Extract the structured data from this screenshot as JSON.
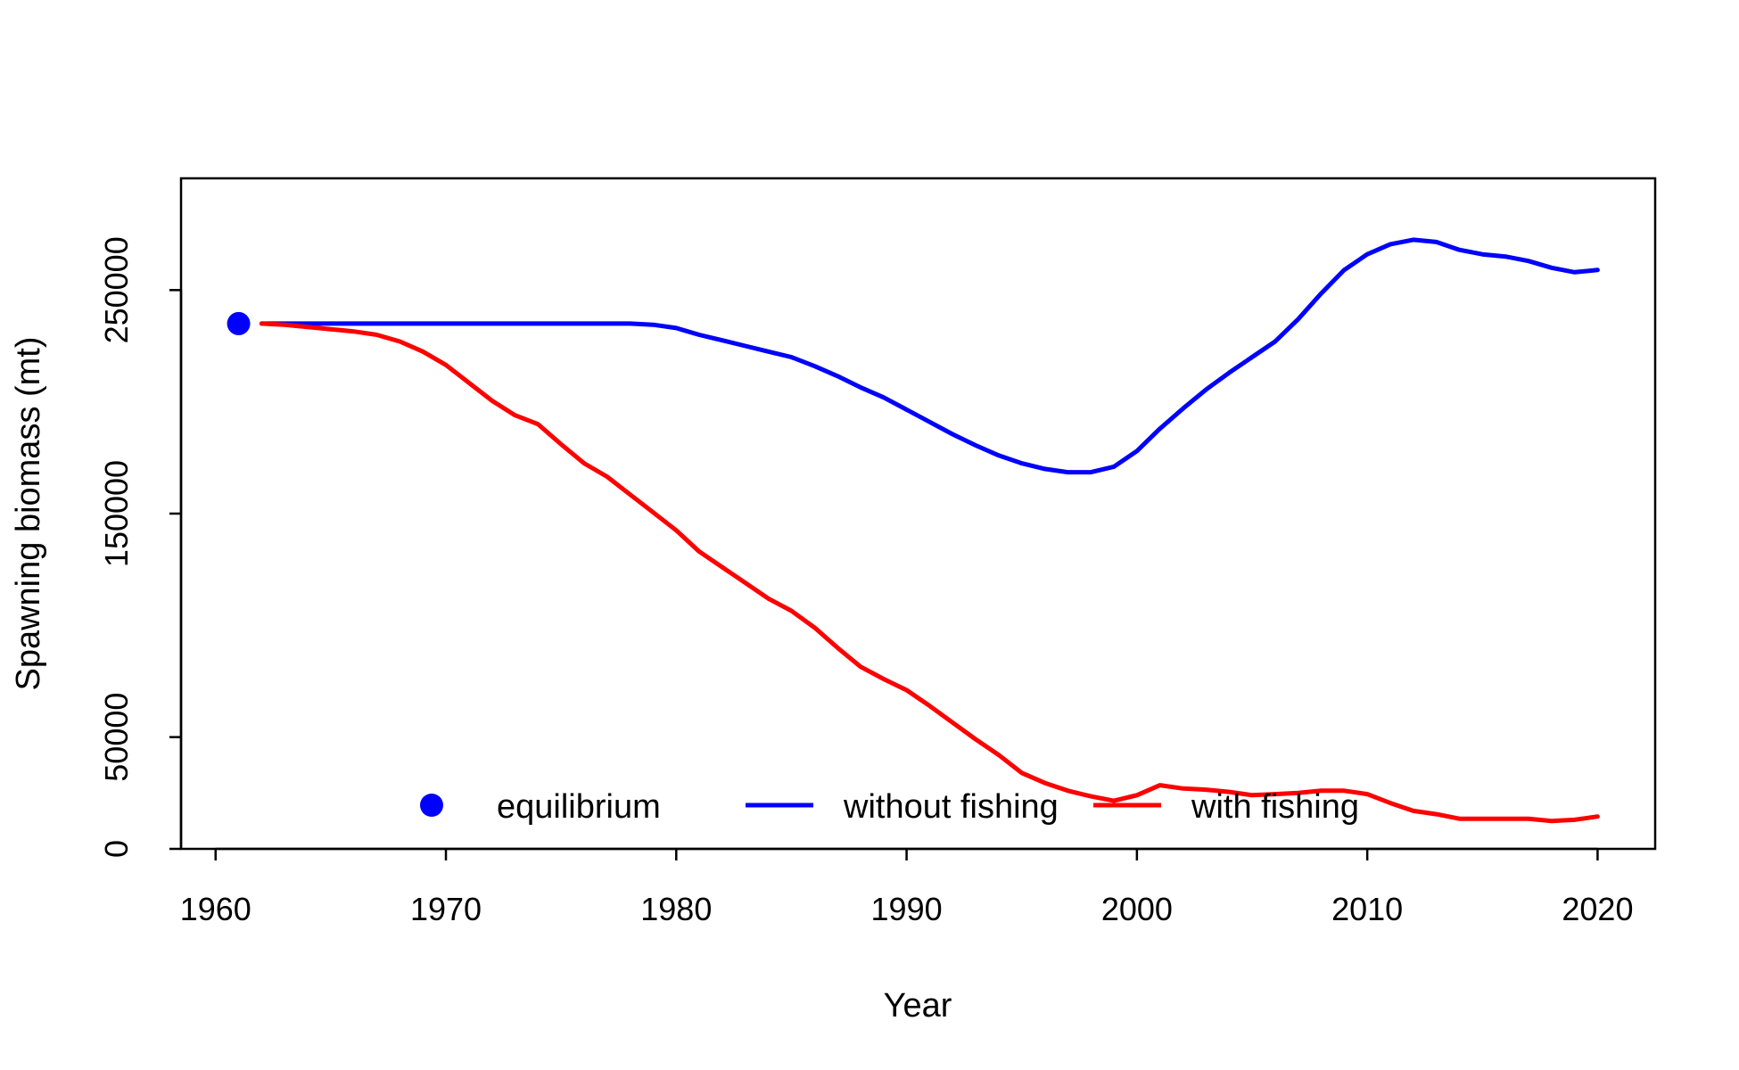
{
  "chart_data": {
    "type": "line",
    "title": "",
    "xlabel": "Year",
    "ylabel": "Spawning biomass (mt)",
    "xlim": [
      1958.5,
      2022.5
    ],
    "ylim": [
      0,
      300000
    ],
    "x_ticks": [
      1960,
      1970,
      1980,
      1990,
      2000,
      2010,
      2020
    ],
    "y_ticks": [
      0,
      50000,
      150000,
      250000
    ],
    "grid": false,
    "legend": {
      "position": "bottom-center",
      "entries": [
        {
          "label": "equilibrium",
          "marker": "point",
          "color": "#0000FF"
        },
        {
          "label": "without fishing",
          "marker": "line",
          "color": "#0000FF"
        },
        {
          "label": "with fishing",
          "marker": "line",
          "color": "#FF0000"
        }
      ]
    },
    "equilibrium": {
      "x": 1961,
      "y": 235000,
      "color": "#0000FF"
    },
    "series": [
      {
        "name": "without fishing",
        "color": "#0000FF",
        "points": [
          [
            1962,
            235000
          ],
          [
            1964,
            235000
          ],
          [
            1966,
            235000
          ],
          [
            1968,
            235000
          ],
          [
            1970,
            235000
          ],
          [
            1972,
            235000
          ],
          [
            1974,
            235000
          ],
          [
            1976,
            235000
          ],
          [
            1978,
            235000
          ],
          [
            1979,
            234500
          ],
          [
            1980,
            233000
          ],
          [
            1981,
            230000
          ],
          [
            1982,
            227500
          ],
          [
            1983,
            225000
          ],
          [
            1984,
            222500
          ],
          [
            1985,
            220000
          ],
          [
            1986,
            216000
          ],
          [
            1987,
            211500
          ],
          [
            1988,
            206500
          ],
          [
            1989,
            202000
          ],
          [
            1990,
            196500
          ],
          [
            1991,
            191000
          ],
          [
            1992,
            185500
          ],
          [
            1993,
            180500
          ],
          [
            1994,
            176000
          ],
          [
            1995,
            172500
          ],
          [
            1996,
            170000
          ],
          [
            1997,
            168500
          ],
          [
            1998,
            168500
          ],
          [
            1999,
            171000
          ],
          [
            2000,
            178000
          ],
          [
            2001,
            188000
          ],
          [
            2002,
            197000
          ],
          [
            2003,
            205500
          ],
          [
            2004,
            213000
          ],
          [
            2005,
            220000
          ],
          [
            2006,
            227000
          ],
          [
            2007,
            237000
          ],
          [
            2008,
            248500
          ],
          [
            2009,
            259000
          ],
          [
            2010,
            266000
          ],
          [
            2011,
            270500
          ],
          [
            2012,
            272500
          ],
          [
            2013,
            271500
          ],
          [
            2014,
            268000
          ],
          [
            2015,
            266000
          ],
          [
            2016,
            265000
          ],
          [
            2017,
            263000
          ],
          [
            2018,
            260000
          ],
          [
            2019,
            258000
          ],
          [
            2020,
            259000
          ]
        ]
      },
      {
        "name": "with fishing",
        "color": "#FF0000",
        "points": [
          [
            1962,
            235000
          ],
          [
            1963,
            234500
          ],
          [
            1964,
            233500
          ],
          [
            1965,
            232500
          ],
          [
            1966,
            231500
          ],
          [
            1967,
            230000
          ],
          [
            1968,
            227000
          ],
          [
            1969,
            222500
          ],
          [
            1970,
            216500
          ],
          [
            1971,
            208500
          ],
          [
            1972,
            200500
          ],
          [
            1973,
            194000
          ],
          [
            1974,
            190000
          ],
          [
            1975,
            181000
          ],
          [
            1976,
            172500
          ],
          [
            1977,
            166500
          ],
          [
            1978,
            158500
          ],
          [
            1979,
            150500
          ],
          [
            1980,
            142500
          ],
          [
            1981,
            133000
          ],
          [
            1982,
            126000
          ],
          [
            1983,
            119000
          ],
          [
            1984,
            112000
          ],
          [
            1985,
            106500
          ],
          [
            1986,
            99000
          ],
          [
            1987,
            90000
          ],
          [
            1988,
            81500
          ],
          [
            1989,
            76000
          ],
          [
            1990,
            71000
          ],
          [
            1991,
            64000
          ],
          [
            1992,
            56500
          ],
          [
            1993,
            49000
          ],
          [
            1994,
            42000
          ],
          [
            1995,
            34000
          ],
          [
            1996,
            29500
          ],
          [
            1997,
            26000
          ],
          [
            1998,
            23500
          ],
          [
            1999,
            21500
          ],
          [
            2000,
            24000
          ],
          [
            2001,
            28500
          ],
          [
            2002,
            27000
          ],
          [
            2003,
            26500
          ],
          [
            2004,
            25500
          ],
          [
            2005,
            24000
          ],
          [
            2006,
            24500
          ],
          [
            2007,
            25000
          ],
          [
            2008,
            26000
          ],
          [
            2009,
            26000
          ],
          [
            2010,
            24500
          ],
          [
            2011,
            20500
          ],
          [
            2012,
            17000
          ],
          [
            2013,
            15500
          ],
          [
            2014,
            13500
          ],
          [
            2015,
            13500
          ],
          [
            2016,
            13500
          ],
          [
            2017,
            13500
          ],
          [
            2018,
            12500
          ],
          [
            2019,
            13000
          ],
          [
            2020,
            14500
          ]
        ]
      }
    ]
  }
}
